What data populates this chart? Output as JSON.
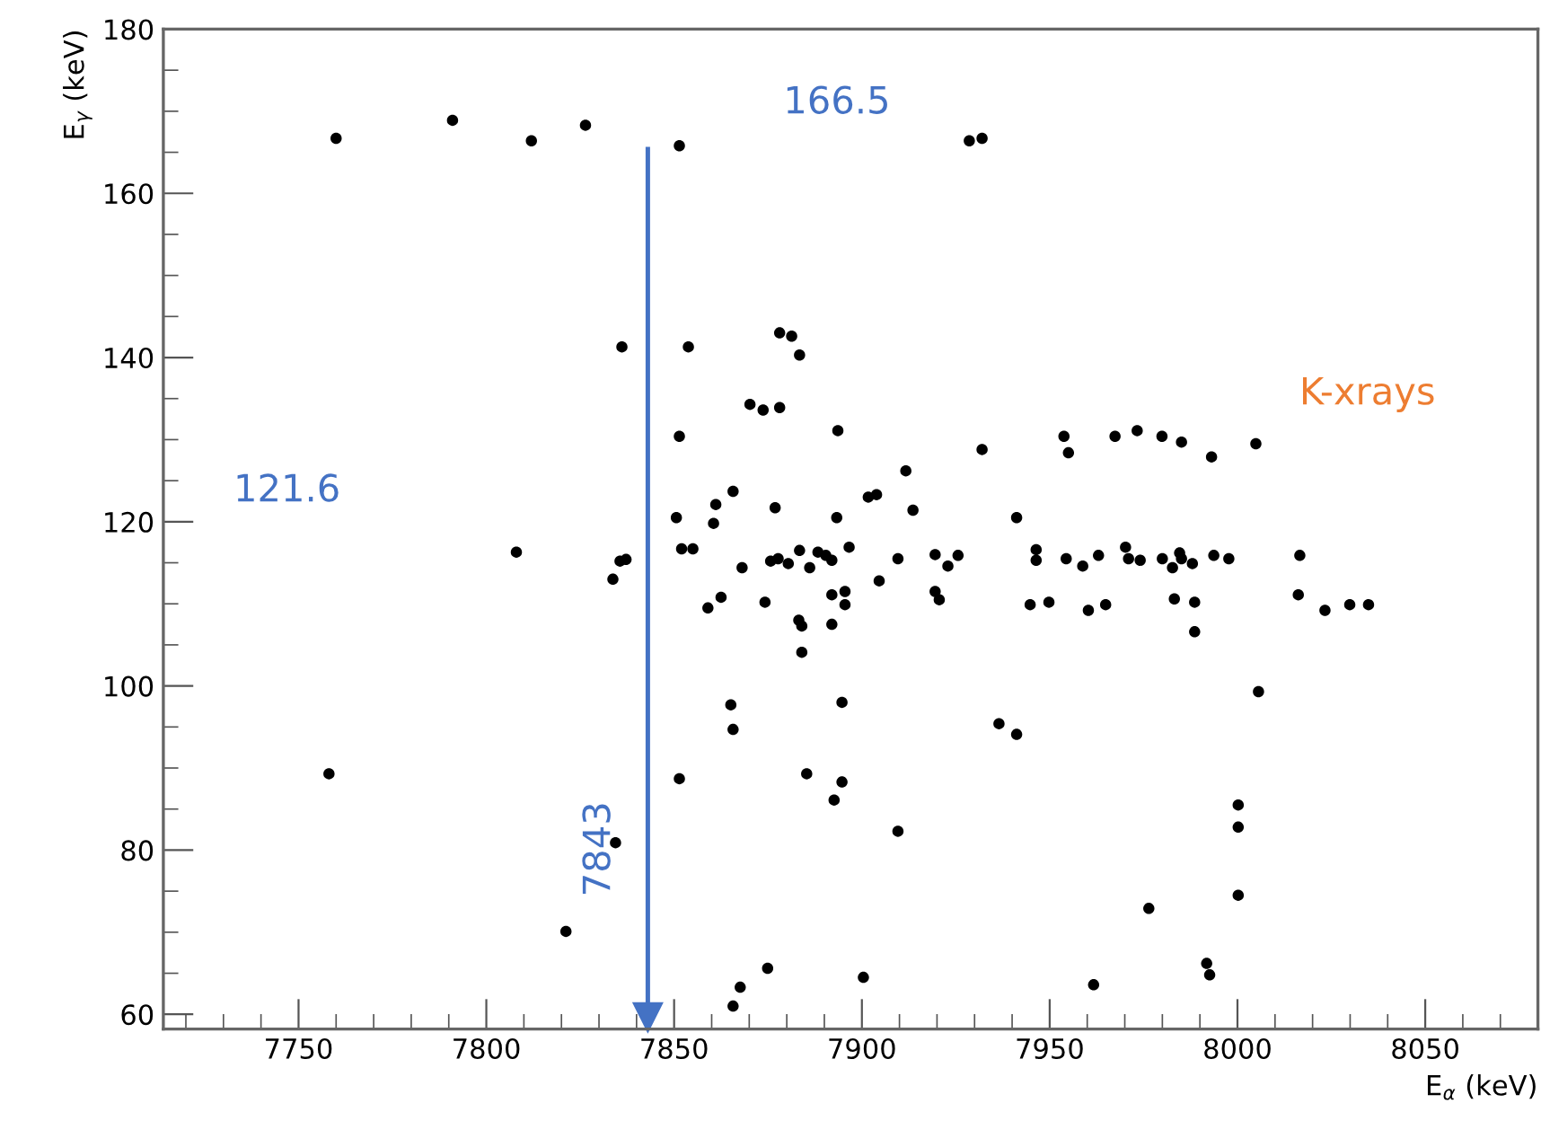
{
  "chart_data": {
    "type": "scatter",
    "xlabel": "E$_{α}$ (keV)",
    "ylabel": "E$_{γ}$ (keV)",
    "x": [
      7760,
      7791,
      7812,
      7826.4,
      7851.4,
      7928.6,
      7932,
      7836.1,
      7853.8,
      7878.1,
      7881.3,
      7883.4,
      7870.2,
      7873.7,
      7878.1,
      7851.4,
      7893.6,
      7932,
      7953.8,
      7955,
      7967.4,
      7973.3,
      7979.9,
      7985.1,
      7993.1,
      8004.9,
      7911.7,
      7901.7,
      7903.9,
      7913.6,
      7941.2,
      7865.7,
      7861.1,
      7860.5,
      7876.9,
      7850.6,
      7893.3,
      7808,
      7852,
      7855,
      7868.1,
      7835.6,
      7837.2,
      7833.7,
      7875.7,
      7877.7,
      7880.4,
      7883.4,
      7886.1,
      7888.3,
      7890.4,
      7892,
      7896.6,
      7909.6,
      7919.5,
      7922.9,
      7925.6,
      7946.4,
      7946.4,
      7954.4,
      7958.8,
      7963,
      7970.2,
      7971,
      7974.1,
      7980,
      7982.7,
      7984.6,
      7985.1,
      7988,
      7993.7,
      7997.7,
      8016.6,
      7862.5,
      7859,
      7874.2,
      7892,
      7892,
      7883.2,
      7884,
      7884,
      7895.5,
      7895.5,
      7904.6,
      7919.5,
      7920.6,
      7944.8,
      7949.8,
      7960.3,
      7964.9,
      7983.2,
      7988.6,
      7988.6,
      8016.2,
      8023.3,
      8029.9,
      8034.9,
      7894.7,
      7865.1,
      7865.7,
      8005.6,
      7936.5,
      7941.2,
      7851.4,
      7758.1,
      7885.3,
      7892.6,
      7894.7,
      7834.4,
      7909.6,
      8000.2,
      8000.2,
      8000.2,
      7976.4,
      7821.2,
      7874.9,
      7867.6,
      7865.7,
      7991.8,
      7992.6,
      7900.4,
      7961.7
    ],
    "values": [
      166.7,
      168.9,
      166.4,
      168.3,
      165.8,
      166.4,
      166.7,
      141.3,
      141.3,
      143.0,
      142.6,
      140.3,
      134.3,
      133.6,
      133.9,
      130.4,
      131.1,
      128.8,
      130.4,
      128.4,
      130.4,
      131.1,
      130.4,
      129.7,
      127.9,
      129.5,
      126.2,
      123.0,
      123.3,
      121.4,
      120.5,
      123.7,
      122.1,
      119.8,
      121.7,
      120.5,
      120.5,
      116.3,
      116.7,
      116.7,
      114.4,
      115.2,
      115.4,
      113.0,
      115.2,
      115.5,
      114.9,
      116.5,
      114.4,
      116.3,
      115.9,
      115.3,
      116.9,
      115.5,
      116.0,
      114.6,
      115.9,
      116.6,
      115.3,
      115.5,
      114.6,
      115.9,
      116.9,
      115.5,
      115.3,
      115.5,
      114.4,
      116.2,
      115.5,
      114.9,
      115.9,
      115.5,
      115.9,
      110.8,
      109.5,
      110.2,
      111.1,
      107.5,
      108.0,
      107.3,
      104.1,
      111.5,
      109.9,
      112.8,
      111.5,
      110.5,
      109.9,
      110.2,
      109.2,
      109.9,
      110.6,
      110.2,
      106.6,
      111.1,
      109.2,
      109.9,
      109.9,
      98.0,
      97.7,
      94.7,
      99.3,
      95.4,
      94.1,
      88.7,
      89.3,
      89.3,
      86.1,
      88.3,
      80.9,
      82.3,
      85.5,
      82.8,
      74.5,
      72.9,
      70.1,
      65.6,
      63.3,
      61.0,
      66.2,
      64.8,
      64.5,
      63.6
    ],
    "color": "#000000",
    "marker": "circle",
    "grid": false,
    "xlim": [
      7714,
      8080
    ],
    "ylim": [
      58.2,
      180
    ],
    "xticks": [
      7750,
      7800,
      7850,
      7900,
      7950,
      8000,
      8050
    ],
    "yticks": [
      60,
      80,
      100,
      120,
      140,
      160,
      180
    ],
    "annotations": [
      "166.5",
      "121.6",
      "K-xrays"
    ],
    "ref_lines": [
      {
        "axis": "x",
        "value": 7843,
        "label": "7843",
        "color": "#4472c4"
      }
    ]
  }
}
